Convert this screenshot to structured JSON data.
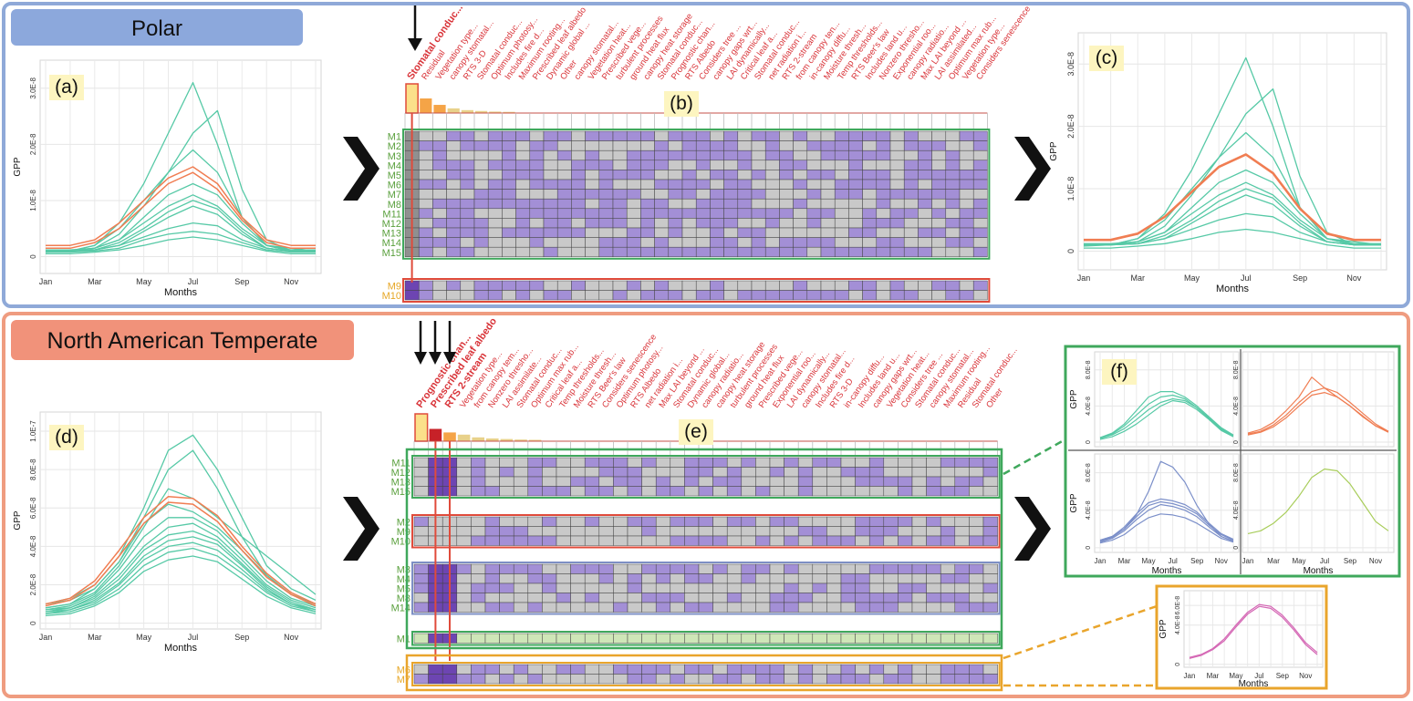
{
  "colors": {
    "polar_frame": "#8fa9d8",
    "temperate_frame": "#ef9c80",
    "polar_header": "#8ca8dc",
    "temperate_header": "#f1927a",
    "teal": "#56c9a6",
    "orange": "#f07d52",
    "blue_line": "#7b8fc9",
    "lime_line": "#a8cd5a",
    "pink_line": "#d466b4",
    "cell_purple": "#a38fd6",
    "cell_dark": "#6d45b2",
    "cell_grey": "#c9c9c9",
    "cell_dark_grey": "#909090",
    "cell_light_green": "#cfe6b8",
    "green_box": "#3fa85c",
    "red_box": "#e04b3b",
    "blue_box": "#7d8fc4",
    "gold_box": "#e9a52c",
    "label_red": "#d9353a",
    "model_green": "#5aa03d",
    "model_gold": "#e6a624",
    "panel_label_bg": "#fdf5c0"
  },
  "sections": {
    "polar": {
      "title": "Polar"
    },
    "temperate": {
      "title": "North American Temperate"
    }
  },
  "panels": {
    "a": {
      "label": "(a)"
    },
    "b": {
      "label": "(b)"
    },
    "c": {
      "label": "(c)"
    },
    "d": {
      "label": "(d)"
    },
    "e": {
      "label": "(e)"
    },
    "f": {
      "label": "(f)"
    }
  },
  "axes": {
    "ylabel": "GPP",
    "xlabel": "Months",
    "month_ticks": [
      "Jan",
      "Mar",
      "May",
      "Jul",
      "Sep",
      "Nov"
    ],
    "ticks_polar": [
      "0",
      "1.0E-8",
      "2.0E-8",
      "3.0E-8"
    ],
    "ticks_temperate": [
      "0",
      "2.0E-8",
      "4.0E-8",
      "6.0E-8",
      "8.0E-8",
      "1.0E-7"
    ],
    "ticks_f_top": [
      "0",
      "4.0E-8",
      "8.0E-8"
    ],
    "ticks_f_bottom": [
      "0",
      "4.0E-8",
      "8.0E-8"
    ],
    "ticks_f_pink": [
      "0",
      "4.0E-8",
      "6.0E-8"
    ]
  },
  "chart_data": [
    {
      "panel": "(a)",
      "type": "line",
      "x": [
        "Jan",
        "Feb",
        "Mar",
        "Apr",
        "May",
        "Jun",
        "Jul",
        "Aug",
        "Sep",
        "Oct",
        "Nov",
        "Dec"
      ],
      "ylabel": "GPP",
      "xlabel": "Months",
      "ylim": [
        -3e-09,
        3.5e-08
      ],
      "teal_series": [
        [
          1e-09,
          1e-09,
          2e-09,
          6e-09,
          1.3e-08,
          2.2e-08,
          3.1e-08,
          2e-08,
          7e-09,
          2e-09,
          1e-09,
          1e-09
        ],
        [
          8e-10,
          1e-09,
          1.5e-09,
          4e-09,
          9e-09,
          1.5e-08,
          2.2e-08,
          2.6e-08,
          1.2e-08,
          3e-09,
          1e-09,
          1e-09
        ],
        [
          1e-09,
          1e-09,
          2e-09,
          5e-09,
          1e-08,
          1.5e-08,
          1.9e-08,
          1.5e-08,
          7e-09,
          2e-09,
          1.5e-09,
          1e-09
        ],
        [
          1e-09,
          1e-09,
          1.5e-09,
          3e-09,
          7e-09,
          1.1e-08,
          1.3e-08,
          1.1e-08,
          6e-09,
          2e-09,
          1e-09,
          1e-09
        ],
        [
          1.2e-09,
          1.2e-09,
          1.5e-09,
          3e-09,
          6e-09,
          9e-09,
          1.1e-08,
          9e-09,
          5e-09,
          2e-09,
          1.2e-09,
          1.2e-09
        ],
        [
          1e-09,
          1e-09,
          1.2e-09,
          2.5e-09,
          5e-09,
          8e-09,
          1e-08,
          8.5e-09,
          4.5e-09,
          1.5e-09,
          1e-09,
          1e-09
        ],
        [
          1e-09,
          1e-09,
          1.2e-09,
          2e-09,
          4.5e-09,
          7e-09,
          9e-09,
          7.5e-09,
          4e-09,
          1.5e-09,
          1e-09,
          1e-09
        ],
        [
          1e-09,
          1e-09,
          1.2e-09,
          2e-09,
          3.5e-09,
          5e-09,
          6e-09,
          5.5e-09,
          3e-09,
          1.5e-09,
          1e-09,
          1e-09
        ],
        [
          8e-10,
          8e-10,
          1e-09,
          1.5e-09,
          3e-09,
          4e-09,
          4.5e-09,
          4e-09,
          2.5e-09,
          1.2e-09,
          8e-10,
          8e-10
        ],
        [
          5e-10,
          5e-10,
          8e-10,
          1.2e-09,
          2e-09,
          3e-09,
          3.5e-09,
          3e-09,
          2e-09,
          1e-09,
          5e-10,
          5e-10
        ]
      ],
      "orange_series": [
        [
          2e-09,
          2e-09,
          3e-09,
          6e-09,
          1e-08,
          1.4e-08,
          1.6e-08,
          1.3e-08,
          7e-09,
          3e-09,
          2e-09,
          2e-09
        ],
        [
          1.5e-09,
          1.5e-09,
          2.5e-09,
          5e-09,
          9e-09,
          1.3e-08,
          1.5e-08,
          1.2e-08,
          6.5e-09,
          2.5e-09,
          1.5e-09,
          1.5e-09
        ]
      ]
    },
    {
      "panel": "(c)",
      "type": "line",
      "x": [
        "Jan",
        "Feb",
        "Mar",
        "Apr",
        "May",
        "Jun",
        "Jul",
        "Aug",
        "Sep",
        "Oct",
        "Nov",
        "Dec"
      ],
      "ylabel": "GPP",
      "xlabel": "Months",
      "ylim": [
        -3e-09,
        3.5e-08
      ],
      "teal_series": [
        [
          1e-09,
          1e-09,
          2e-09,
          6e-09,
          1.3e-08,
          2.2e-08,
          3.1e-08,
          2e-08,
          7e-09,
          2e-09,
          1e-09,
          1e-09
        ],
        [
          8e-10,
          1e-09,
          1.5e-09,
          4e-09,
          9e-09,
          1.5e-08,
          2.2e-08,
          2.6e-08,
          1.2e-08,
          3e-09,
          1e-09,
          1e-09
        ],
        [
          1e-09,
          1e-09,
          2e-09,
          5e-09,
          1e-08,
          1.5e-08,
          1.9e-08,
          1.5e-08,
          7e-09,
          2e-09,
          1.5e-09,
          1e-09
        ],
        [
          1e-09,
          1e-09,
          1.5e-09,
          3e-09,
          7e-09,
          1.1e-08,
          1.3e-08,
          1.1e-08,
          6e-09,
          2e-09,
          1e-09,
          1e-09
        ],
        [
          1.2e-09,
          1.2e-09,
          1.5e-09,
          3e-09,
          6e-09,
          9e-09,
          1.1e-08,
          9e-09,
          5e-09,
          2e-09,
          1.2e-09,
          1.2e-09
        ],
        [
          1e-09,
          1e-09,
          1.2e-09,
          2.5e-09,
          5e-09,
          8e-09,
          1e-08,
          8.5e-09,
          4.5e-09,
          1.5e-09,
          1e-09,
          1e-09
        ],
        [
          1e-09,
          1e-09,
          1.2e-09,
          2e-09,
          4.5e-09,
          7e-09,
          9e-09,
          7.5e-09,
          4e-09,
          1.5e-09,
          1e-09,
          1e-09
        ],
        [
          1e-09,
          1e-09,
          1.2e-09,
          2e-09,
          3.5e-09,
          5e-09,
          6e-09,
          5.5e-09,
          3e-09,
          1.5e-09,
          1e-09,
          1e-09
        ],
        [
          5e-10,
          5e-10,
          8e-10,
          1.2e-09,
          2e-09,
          3e-09,
          3.5e-09,
          3e-09,
          2e-09,
          1e-09,
          5e-10,
          5e-10
        ]
      ],
      "orange_series": [
        [
          1.8e-09,
          1.8e-09,
          2.8e-09,
          5.5e-09,
          9.5e-09,
          1.35e-08,
          1.55e-08,
          1.25e-08,
          6.8e-09,
          2.8e-09,
          1.8e-09,
          1.8e-09
        ]
      ]
    },
    {
      "panel": "(d)",
      "type": "line",
      "x": [
        "Jan",
        "Feb",
        "Mar",
        "Apr",
        "May",
        "Jun",
        "Jul",
        "Aug",
        "Sep",
        "Oct",
        "Nov",
        "Dec"
      ],
      "ylabel": "GPP",
      "xlabel": "Months",
      "ylim": [
        -3e-09,
        1.1e-07
      ],
      "teal_series": [
        [
          1e-08,
          1.3e-08,
          2e-08,
          3.5e-08,
          6e-08,
          9e-08,
          9.8e-08,
          8e-08,
          5.5e-08,
          3e-08,
          1.8e-08,
          1.2e-08
        ],
        [
          1e-08,
          1.2e-08,
          1.8e-08,
          3.2e-08,
          5.5e-08,
          8e-08,
          9e-08,
          7e-08,
          4.5e-08,
          2.5e-08,
          1.5e-08,
          1e-08
        ],
        [
          8e-09,
          1e-08,
          1.6e-08,
          3e-08,
          5e-08,
          7e-08,
          6.5e-08,
          5.5e-08,
          4.5e-08,
          3.5e-08,
          2.5e-08,
          1.5e-08
        ],
        [
          8e-09,
          1e-08,
          1.8e-08,
          3.2e-08,
          5.2e-08,
          6.2e-08,
          5.8e-08,
          5e-08,
          3.8e-08,
          2.5e-08,
          1.5e-08,
          1e-08
        ],
        [
          7e-09,
          9e-09,
          1.5e-08,
          2.8e-08,
          4.5e-08,
          5.5e-08,
          5.5e-08,
          4.8e-08,
          3.5e-08,
          2.2e-08,
          1.3e-08,
          9e-09
        ],
        [
          7e-09,
          8e-09,
          1.4e-08,
          2.5e-08,
          4e-08,
          5e-08,
          5.2e-08,
          4.5e-08,
          3.3e-08,
          2e-08,
          1.2e-08,
          8e-09
        ],
        [
          6e-09,
          8e-09,
          1.3e-08,
          2.3e-08,
          3.8e-08,
          4.6e-08,
          4.8e-08,
          4.3e-08,
          3.1e-08,
          1.9e-08,
          1.1e-08,
          7e-09
        ],
        [
          6e-09,
          7e-09,
          1.2e-08,
          2.1e-08,
          3.5e-08,
          4.3e-08,
          4.5e-08,
          4.1e-08,
          3e-08,
          1.8e-08,
          1e-08,
          7e-09
        ],
        [
          5e-09,
          7e-09,
          1.1e-08,
          2e-08,
          3.3e-08,
          4e-08,
          4.2e-08,
          3.8e-08,
          2.8e-08,
          1.7e-08,
          1e-08,
          6e-09
        ],
        [
          5e-09,
          6e-09,
          1e-08,
          1.8e-08,
          3e-08,
          3.7e-08,
          3.9e-08,
          3.5e-08,
          2.6e-08,
          1.6e-08,
          9e-09,
          6e-09
        ],
        [
          4e-09,
          5e-09,
          9e-09,
          1.6e-08,
          2.7e-08,
          3.3e-08,
          3.5e-08,
          3.2e-08,
          2.3e-08,
          1.4e-08,
          8e-09,
          5e-09
        ]
      ],
      "orange_series": [
        [
          1e-08,
          1.3e-08,
          2.2e-08,
          3.8e-08,
          5.5e-08,
          6.6e-08,
          6.5e-08,
          5.6e-08,
          4e-08,
          2.6e-08,
          1.6e-08,
          1e-08
        ],
        [
          9e-09,
          1.2e-08,
          2e-08,
          3.5e-08,
          5.2e-08,
          6.3e-08,
          6.2e-08,
          5.3e-08,
          3.8e-08,
          2.4e-08,
          1.5e-08,
          9e-09
        ]
      ]
    },
    {
      "panel": "(f) top-left",
      "type": "line",
      "x": [
        "Jan",
        "Feb",
        "Mar",
        "Apr",
        "May",
        "Jun",
        "Jul",
        "Aug",
        "Sep",
        "Oct",
        "Nov",
        "Dec"
      ],
      "ylim": [
        -5e-09,
        1e-07
      ],
      "series": [
        [
          5e-09,
          1e-08,
          2e-08,
          3.5e-08,
          5e-08,
          5.6e-08,
          5.6e-08,
          5e-08,
          4e-08,
          2.8e-08,
          1.6e-08,
          8e-09
        ],
        [
          5e-09,
          9e-09,
          1.8e-08,
          3e-08,
          4.2e-08,
          5e-08,
          5.2e-08,
          4.8e-08,
          3.8e-08,
          2.6e-08,
          1.4e-08,
          7e-09
        ],
        [
          4e-09,
          8e-09,
          1.5e-08,
          2.5e-08,
          3.6e-08,
          4.4e-08,
          4.8e-08,
          4.6e-08,
          3.8e-08,
          2.7e-08,
          1.5e-08,
          7e-09
        ],
        [
          3e-09,
          6e-09,
          1.2e-08,
          2e-08,
          3e-08,
          4e-08,
          4.6e-08,
          4.4e-08,
          3.6e-08,
          2.5e-08,
          1.3e-08,
          6e-09
        ]
      ]
    },
    {
      "panel": "(f) top-right",
      "type": "line",
      "x": [
        "Jan",
        "Feb",
        "Mar",
        "Apr",
        "May",
        "Jun",
        "Jul",
        "Aug",
        "Sep",
        "Oct",
        "Nov",
        "Dec"
      ],
      "ylim": [
        -5e-09,
        1e-07
      ],
      "series": [
        [
          1e-08,
          1.4e-08,
          2.2e-08,
          3.5e-08,
          5e-08,
          7.2e-08,
          6e-08,
          5e-08,
          4e-08,
          2.8e-08,
          1.8e-08,
          1.2e-08
        ],
        [
          9e-09,
          1.2e-08,
          1.9e-08,
          3e-08,
          4.4e-08,
          5.6e-08,
          6e-08,
          5.5e-08,
          4.4e-08,
          3.2e-08,
          2e-08,
          1.2e-08
        ],
        [
          8e-09,
          1.1e-08,
          1.7e-08,
          2.7e-08,
          4e-08,
          5.2e-08,
          5.5e-08,
          5e-08,
          4e-08,
          2.9e-08,
          1.8e-08,
          1.1e-08
        ]
      ]
    },
    {
      "panel": "(f) bottom-left",
      "type": "line",
      "x": [
        "Jan",
        "Feb",
        "Mar",
        "Apr",
        "May",
        "Jun",
        "Jul",
        "Aug",
        "Sep",
        "Oct",
        "Nov",
        "Dec"
      ],
      "ylim": [
        -5e-09,
        1e-07
      ],
      "series": [
        [
          8e-09,
          1.2e-08,
          2e-08,
          3.5e-08,
          6e-08,
          9.2e-08,
          8.6e-08,
          7e-08,
          4.5e-08,
          2.5e-08,
          1.2e-08,
          7e-09
        ],
        [
          8e-09,
          1.2e-08,
          2.2e-08,
          3.6e-08,
          4.8e-08,
          5.2e-08,
          5e-08,
          4.6e-08,
          3.8e-08,
          2.6e-08,
          1.5e-08,
          9e-09
        ],
        [
          7e-09,
          1.1e-08,
          2e-08,
          3.3e-08,
          4.5e-08,
          4.9e-08,
          4.7e-08,
          4.3e-08,
          3.6e-08,
          2.4e-08,
          1.4e-08,
          8e-09
        ],
        [
          6e-09,
          1e-08,
          1.8e-08,
          3e-08,
          4e-08,
          4.6e-08,
          4.4e-08,
          4e-08,
          3.3e-08,
          2.2e-08,
          1.2e-08,
          7e-09
        ],
        [
          5e-09,
          8e-09,
          1.4e-08,
          2.4e-08,
          3.2e-08,
          3.6e-08,
          3.5e-08,
          3.2e-08,
          2.6e-08,
          1.8e-08,
          1e-08,
          6e-09
        ]
      ]
    },
    {
      "panel": "(f) bottom-right",
      "type": "line",
      "x": [
        "Jan",
        "Feb",
        "Mar",
        "Apr",
        "May",
        "Jun",
        "Jul",
        "Aug",
        "Sep",
        "Oct",
        "Nov",
        "Dec"
      ],
      "ylim": [
        -5e-09,
        1e-07
      ],
      "series": [
        [
          1.5e-08,
          1.8e-08,
          2.6e-08,
          3.8e-08,
          5.5e-08,
          7.5e-08,
          8.4e-08,
          8.2e-08,
          6.8e-08,
          4.8e-08,
          2.8e-08,
          1.8e-08
        ]
      ]
    },
    {
      "panel": "(f) orange box",
      "type": "line",
      "x": [
        "Jan",
        "Feb",
        "Mar",
        "Apr",
        "May",
        "Jun",
        "Jul",
        "Aug",
        "Sep",
        "Oct",
        "Nov",
        "Dec"
      ],
      "ylim": [
        -3e-09,
        7.5e-08
      ],
      "series": [
        [
          7e-09,
          1e-08,
          1.6e-08,
          2.6e-08,
          4e-08,
          5.3e-08,
          6.1e-08,
          5.9e-08,
          5e-08,
          3.7e-08,
          2.2e-08,
          1.2e-08
        ],
        [
          6e-09,
          9e-09,
          1.5e-08,
          2.4e-08,
          3.8e-08,
          5.1e-08,
          5.9e-08,
          5.7e-08,
          4.8e-08,
          3.5e-08,
          2e-08,
          1e-08
        ]
      ]
    }
  ],
  "matrix_b": {
    "attributes": [
      "Stomatal conduc...",
      "Residual",
      "Vegetation type...",
      "canopy stomatal...",
      "RTS 3-D",
      "Stomatal conduc...",
      "Optimum photosy...",
      "Includes fire d...",
      "Maximum rooting...",
      "Prescribed leaf albedo",
      "Dynamic global ...",
      "Other",
      "canopy stomatal...",
      "Vegetation heat...",
      "Prescribed vege...",
      "turbulent processes",
      "ground heat flux",
      "canopy heat storage",
      "Stomatal conduc...",
      "Prognostic chan...",
      "RTS Albedo",
      "Considers tree ...",
      "canopy gaps wrt...",
      "LAI dynamically...",
      "Critical leaf a...",
      "Stomatal conduc...",
      "net radiation i...",
      "RTS 2-stream",
      "from canopy ten...",
      "in-canopy diffu...",
      "Moisture thresh...",
      "Temp thresholds...",
      "RTS Beer's law",
      "Includes land u...",
      "Nonzero thresho...",
      "Exponential roo...",
      "canopy radiatio...",
      "Max LAI beyond ...",
      "LAI assimilated...",
      "Optimum max rub...",
      "Vegetation type...",
      "Considers senescence"
    ],
    "bars": [
      1.0,
      0.5,
      0.28,
      0.16,
      0.1,
      0.07,
      0.05,
      0.04
    ],
    "groups": [
      {
        "rows": [
          "M1",
          "M2",
          "M3",
          "M4",
          "M5",
          "M6",
          "M7",
          "M8",
          "M11",
          "M12",
          "M13",
          "M14",
          "M15"
        ]
      },
      {
        "rows": [
          "M9",
          "M10"
        ]
      }
    ]
  },
  "matrix_e": {
    "attributes": [
      "Prognostic chan...",
      "Prescribed leaf albedo",
      "RTS 2-stream",
      "Vegetation type...",
      "from canopy tem...",
      "Nonzero thresho...",
      "LAI assimilate...",
      "Stomatal conduc...",
      "Optimum max rub...",
      "Critical leaf a...",
      "Temp thresholds...",
      "Moisture thresh...",
      "RTS Beer's law",
      "Considers senescence",
      "Optimum photosy...",
      "RTS Albedo",
      "net radiation i...",
      "Max LAI beyond ...",
      "Stomatal conduc...",
      "Dynamic global...",
      "canopy radiatio...",
      "canopy heat storage",
      "turbulent processes",
      "ground heat flux",
      "Prescribed vege...",
      "Exponential roo...",
      "LAI dynamically...",
      "canopy stomatal...",
      "Includes fire d...",
      "RTS 3-D",
      "in-canopy diffu...",
      "Includes land u...",
      "canopy gaps wrt...",
      "Vegetation heat...",
      "Considers tree ...",
      "Stomatal conduc...",
      "canopy stomatal...",
      "Maximum rooting...",
      "Residual",
      "Stomatal conduc...",
      "Other"
    ],
    "bars": [
      1.0,
      0.45,
      0.32,
      0.24,
      0.14,
      0.1,
      0.08,
      0.06,
      0.05
    ],
    "groups": [
      {
        "rows": [
          "M11",
          "M12",
          "M13",
          "M15"
        ]
      },
      {
        "rows": [
          "M2",
          "M9",
          "M10"
        ]
      },
      {
        "rows": [
          "M3",
          "M4",
          "M5",
          "M8",
          "M14"
        ]
      },
      {
        "rows": [
          "M1"
        ]
      },
      {
        "rows": [
          "M6",
          "M7"
        ]
      }
    ]
  }
}
